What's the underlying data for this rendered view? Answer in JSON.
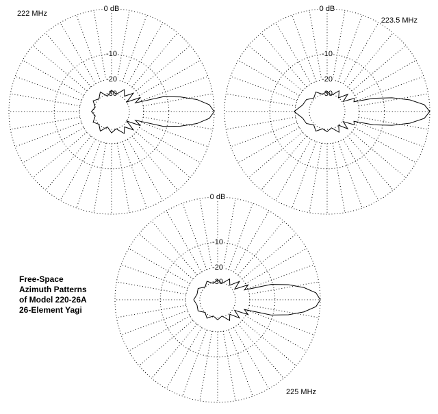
{
  "chart_data": [
    {
      "type": "polar",
      "title": "222 MHz",
      "radial_scale": "arrl-log",
      "rmax": 0,
      "rticks": [
        {
          "value": 0,
          "label": "0 dB"
        },
        -10,
        -20,
        -30
      ],
      "grid": true,
      "color": "#000000",
      "angles": [
        0,
        4,
        8,
        12,
        16,
        20,
        26,
        32,
        40,
        50,
        60,
        75,
        90,
        105,
        120,
        135,
        150,
        165,
        180,
        195,
        210,
        225,
        240,
        255,
        270,
        285,
        300,
        310,
        320,
        328,
        334,
        340,
        344,
        348,
        352,
        356
      ],
      "values": [
        0,
        -0.8,
        -3,
        -6.5,
        -11,
        -24,
        -20,
        -30,
        -22,
        -28,
        -24,
        -30,
        -27,
        -32,
        -26,
        -30,
        -27,
        -31,
        -28,
        -31,
        -27,
        -30,
        -26,
        -32,
        -27,
        -30,
        -24,
        -28,
        -22,
        -30,
        -20,
        -24,
        -11,
        -6.5,
        -3,
        -0.8
      ]
    },
    {
      "type": "polar",
      "title": "223.5 MHz",
      "radial_scale": "arrl-log",
      "rmax": 0,
      "rticks": [
        {
          "value": 0,
          "label": "0 dB"
        },
        -10,
        -20,
        -30
      ],
      "grid": true,
      "color": "#000000",
      "angles": [
        0,
        4,
        8,
        12,
        16,
        20,
        26,
        32,
        40,
        50,
        60,
        75,
        90,
        105,
        120,
        135,
        150,
        165,
        180,
        195,
        210,
        225,
        240,
        255,
        270,
        285,
        300,
        310,
        320,
        328,
        334,
        340,
        344,
        348,
        352,
        356
      ],
      "values": [
        0,
        -0.9,
        -3.5,
        -7.5,
        -13,
        -22,
        -21,
        -29,
        -23,
        -30,
        -25,
        -31,
        -28,
        -30,
        -26,
        -29,
        -25,
        -24,
        -19.5,
        -24,
        -25,
        -29,
        -26,
        -30,
        -28,
        -31,
        -25,
        -30,
        -23,
        -29,
        -21,
        -22,
        -13,
        -7.5,
        -3.5,
        -0.9
      ]
    },
    {
      "type": "polar",
      "title": "225 MHz",
      "radial_scale": "arrl-log",
      "rmax": 0,
      "rticks": [
        {
          "value": 0,
          "label": "0 dB"
        },
        -10,
        -20,
        -30
      ],
      "grid": true,
      "color": "#000000",
      "annotation": [
        "Free-Space",
        "Azimuth Patterns",
        "of Model 220-26A",
        "26-Element Yagi"
      ],
      "angles": [
        0,
        4,
        8,
        12,
        16,
        20,
        26,
        32,
        40,
        50,
        60,
        75,
        90,
        105,
        120,
        135,
        150,
        165,
        180,
        195,
        210,
        225,
        240,
        255,
        270,
        285,
        300,
        310,
        320,
        328,
        334,
        340,
        344,
        348,
        352,
        356
      ],
      "values": [
        0,
        -0.7,
        -2.8,
        -6,
        -10.5,
        -22,
        -19,
        -28,
        -22,
        -29,
        -25,
        -31,
        -28,
        -31,
        -27,
        -30,
        -26,
        -27,
        -25,
        -27,
        -26,
        -30,
        -27,
        -31,
        -28,
        -31,
        -25,
        -29,
        -22,
        -28,
        -19,
        -22,
        -10.5,
        -6,
        -2.8,
        -0.7
      ]
    }
  ]
}
